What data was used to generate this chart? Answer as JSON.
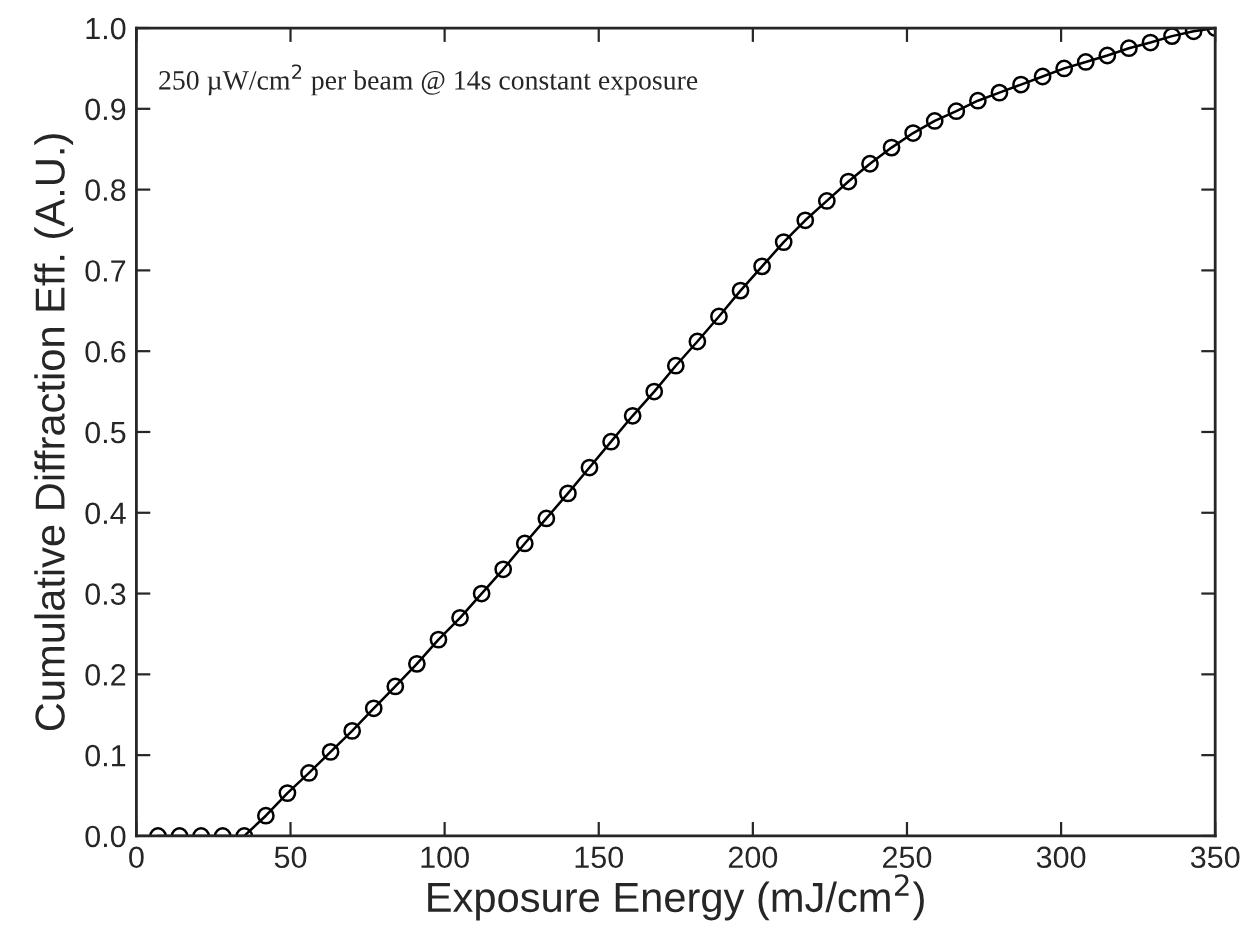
{
  "chart_data": {
    "type": "line",
    "xlabel": "Exposure Energy (mJ/cm$^{2}$)",
    "ylabel": "Cumulative Diffraction Eff. (A.U.)",
    "annotations": [
      "250 µW/cm$^{2}$ per beam @ 14s constant exposure"
    ],
    "x": [
      7,
      14,
      21,
      28,
      35,
      42,
      49,
      56,
      63,
      70,
      77,
      84,
      91,
      98,
      105,
      112,
      119,
      126,
      133,
      140,
      147,
      154,
      161,
      168,
      175,
      182,
      189,
      196,
      203,
      210,
      217,
      224,
      231,
      238,
      245,
      252,
      259,
      266,
      273,
      280,
      287,
      294,
      301,
      308,
      315,
      322,
      329,
      336,
      343,
      350
    ],
    "series": [
      {
        "color": "#000000",
        "values": [
          0,
          0,
          0,
          0,
          0,
          0.025,
          0.053,
          0.078,
          0.104,
          0.13,
          0.158,
          0.185,
          0.213,
          0.243,
          0.27,
          0.3,
          0.33,
          0.362,
          0.393,
          0.424,
          0.456,
          0.488,
          0.52,
          0.55,
          0.582,
          0.612,
          0.643,
          0.675,
          0.705,
          0.735,
          0.762,
          0.786,
          0.81,
          0.832,
          0.852,
          0.87,
          0.885,
          0.897,
          0.91,
          0.92,
          0.93,
          0.94,
          0.95,
          0.958,
          0.966,
          0.975,
          0.982,
          0.99,
          0.996,
          1.0
        ]
      }
    ],
    "xlim": [
      0,
      350
    ],
    "ylim": [
      0,
      1
    ],
    "xticks": [
      0,
      50,
      100,
      150,
      200,
      250,
      300,
      350
    ],
    "yticks": [
      {
        "value": 0,
        "label": "0.0"
      },
      {
        "value": 0.1,
        "label": "0.1"
      },
      {
        "value": 0.2,
        "label": "0.2"
      },
      {
        "value": 0.3,
        "label": "0.3"
      },
      {
        "value": 0.4,
        "label": "0.4"
      },
      {
        "value": 0.5,
        "label": "0.5"
      },
      {
        "value": 0.6,
        "label": "0.6"
      },
      {
        "value": 0.7,
        "label": "0.7"
      },
      {
        "value": 0.8,
        "label": "0.8"
      },
      {
        "value": 0.9,
        "label": "0.9"
      },
      {
        "value": 1,
        "label": "1.0"
      }
    ],
    "marker": "circle",
    "line_style": "solid",
    "grid": false,
    "legend": false
  }
}
